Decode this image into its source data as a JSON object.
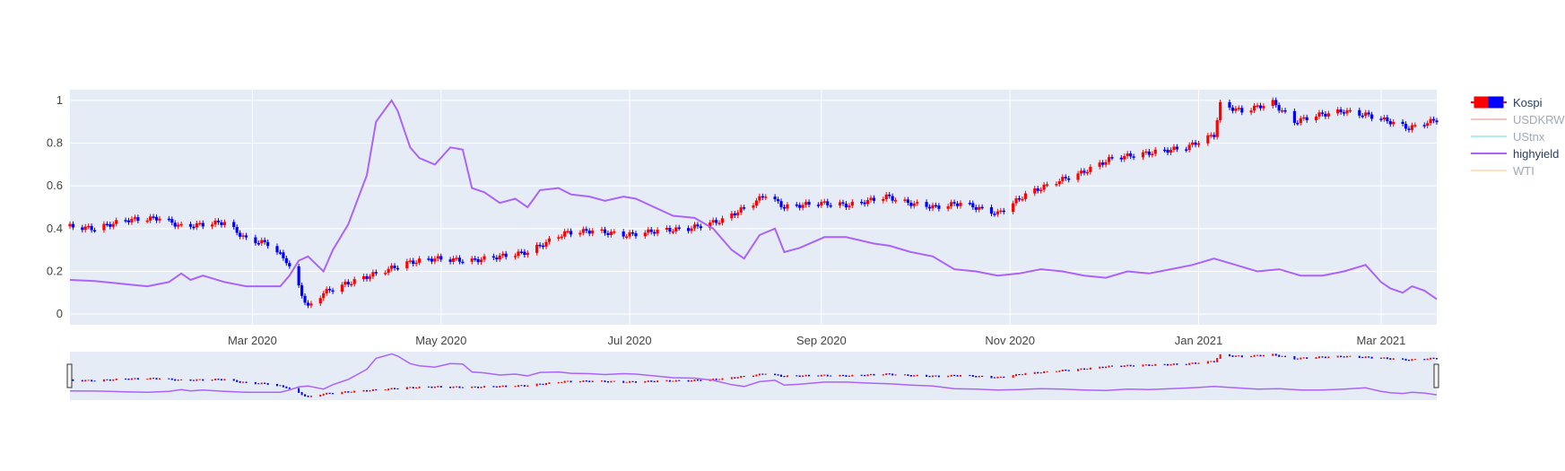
{
  "chart_data": {
    "type": "candlestick+line",
    "x_range": [
      "2020-01-02",
      "2021-03-19"
    ],
    "y_range": [
      -0.05,
      1.05
    ],
    "grid": true,
    "legend_position": "top-right",
    "x_ticks": [
      {
        "date": "2020-03-01",
        "label": "Mar 2020"
      },
      {
        "date": "2020-05-01",
        "label": "May 2020"
      },
      {
        "date": "2020-07-01",
        "label": "Jul 2020"
      },
      {
        "date": "2020-09-01",
        "label": "Sep 2020"
      },
      {
        "date": "2020-11-01",
        "label": "Nov 2020"
      },
      {
        "date": "2021-01-01",
        "label": "Jan 2021"
      },
      {
        "date": "2021-03-01",
        "label": "Mar 2021"
      }
    ],
    "y_ticks": [
      {
        "value": 0,
        "label": "0"
      },
      {
        "value": 0.2,
        "label": "0.2"
      },
      {
        "value": 0.4,
        "label": "0.4"
      },
      {
        "value": 0.6,
        "label": "0.6"
      },
      {
        "value": 0.8,
        "label": "0.8"
      },
      {
        "value": 1,
        "label": "1"
      }
    ],
    "series": [
      {
        "name": "Kospi",
        "kind": "candlestick",
        "visible": true,
        "increasing_color": "#ff0000",
        "decreasing_color": "#0000ff",
        "close": [
          [
            "2020-01-02",
            0.41
          ],
          [
            "2020-01-10",
            0.4
          ],
          [
            "2020-01-20",
            0.44
          ],
          [
            "2020-01-31",
            0.45
          ],
          [
            "2020-02-07",
            0.41
          ],
          [
            "2020-02-14",
            0.42
          ],
          [
            "2020-02-21",
            0.43
          ],
          [
            "2020-02-28",
            0.35
          ],
          [
            "2020-03-06",
            0.33
          ],
          [
            "2020-03-12",
            0.25
          ],
          [
            "2020-03-19",
            0.03
          ],
          [
            "2020-03-24",
            0.1
          ],
          [
            "2020-03-31",
            0.14
          ],
          [
            "2020-04-10",
            0.19
          ],
          [
            "2020-04-20",
            0.24
          ],
          [
            "2020-04-29",
            0.26
          ],
          [
            "2020-05-11",
            0.25
          ],
          [
            "2020-05-20",
            0.27
          ],
          [
            "2020-05-29",
            0.29
          ],
          [
            "2020-06-10",
            0.38
          ],
          [
            "2020-06-19",
            0.39
          ],
          [
            "2020-06-30",
            0.37
          ],
          [
            "2020-07-10",
            0.39
          ],
          [
            "2020-07-20",
            0.4
          ],
          [
            "2020-07-31",
            0.44
          ],
          [
            "2020-08-10",
            0.52
          ],
          [
            "2020-08-14",
            0.56
          ],
          [
            "2020-08-20",
            0.5
          ],
          [
            "2020-08-31",
            0.52
          ],
          [
            "2020-09-10",
            0.51
          ],
          [
            "2020-09-22",
            0.55
          ],
          [
            "2020-09-29",
            0.52
          ],
          [
            "2020-10-08",
            0.5
          ],
          [
            "2020-10-16",
            0.52
          ],
          [
            "2020-10-28",
            0.47
          ],
          [
            "2020-10-30",
            0.49
          ],
          [
            "2020-11-06",
            0.56
          ],
          [
            "2020-11-16",
            0.62
          ],
          [
            "2020-11-24",
            0.66
          ],
          [
            "2020-12-04",
            0.73
          ],
          [
            "2020-12-14",
            0.75
          ],
          [
            "2020-12-28",
            0.78
          ],
          [
            "2021-01-06",
            0.84
          ],
          [
            "2021-01-08",
            0.98
          ],
          [
            "2021-01-15",
            0.95
          ],
          [
            "2021-01-25",
            0.99
          ],
          [
            "2021-02-01",
            0.9
          ],
          [
            "2021-02-08",
            0.93
          ],
          [
            "2021-02-17",
            0.95
          ],
          [
            "2021-02-25",
            0.93
          ],
          [
            "2021-03-04",
            0.9
          ],
          [
            "2021-03-10",
            0.87
          ],
          [
            "2021-03-19",
            0.91
          ]
        ]
      },
      {
        "name": "USDKRW",
        "kind": "line",
        "visible": false,
        "color": "#ef9a9a"
      },
      {
        "name": "UStnx",
        "kind": "line",
        "visible": false,
        "color": "#80deea"
      },
      {
        "name": "highyield",
        "kind": "line",
        "visible": true,
        "color": "#ab63fa",
        "points": [
          [
            "2020-01-02",
            0.16
          ],
          [
            "2020-01-10",
            0.155
          ],
          [
            "2020-01-20",
            0.14
          ],
          [
            "2020-01-27",
            0.13
          ],
          [
            "2020-02-03",
            0.15
          ],
          [
            "2020-02-07",
            0.19
          ],
          [
            "2020-02-10",
            0.16
          ],
          [
            "2020-02-14",
            0.18
          ],
          [
            "2020-02-21",
            0.15
          ],
          [
            "2020-02-28",
            0.13
          ],
          [
            "2020-03-06",
            0.13
          ],
          [
            "2020-03-10",
            0.13
          ],
          [
            "2020-03-13",
            0.18
          ],
          [
            "2020-03-16",
            0.25
          ],
          [
            "2020-03-19",
            0.27
          ],
          [
            "2020-03-24",
            0.2
          ],
          [
            "2020-03-27",
            0.3
          ],
          [
            "2020-04-01",
            0.42
          ],
          [
            "2020-04-07",
            0.65
          ],
          [
            "2020-04-10",
            0.9
          ],
          [
            "2020-04-15",
            1.0
          ],
          [
            "2020-04-17",
            0.95
          ],
          [
            "2020-04-21",
            0.78
          ],
          [
            "2020-04-24",
            0.73
          ],
          [
            "2020-04-29",
            0.7
          ],
          [
            "2020-05-04",
            0.78
          ],
          [
            "2020-05-08",
            0.77
          ],
          [
            "2020-05-11",
            0.59
          ],
          [
            "2020-05-15",
            0.57
          ],
          [
            "2020-05-20",
            0.52
          ],
          [
            "2020-05-25",
            0.54
          ],
          [
            "2020-05-29",
            0.5
          ],
          [
            "2020-06-02",
            0.58
          ],
          [
            "2020-06-08",
            0.59
          ],
          [
            "2020-06-12",
            0.56
          ],
          [
            "2020-06-18",
            0.55
          ],
          [
            "2020-06-23",
            0.53
          ],
          [
            "2020-06-29",
            0.55
          ],
          [
            "2020-07-03",
            0.54
          ],
          [
            "2020-07-09",
            0.5
          ],
          [
            "2020-07-15",
            0.46
          ],
          [
            "2020-07-22",
            0.45
          ],
          [
            "2020-07-28",
            0.4
          ],
          [
            "2020-08-03",
            0.3
          ],
          [
            "2020-08-07",
            0.26
          ],
          [
            "2020-08-12",
            0.37
          ],
          [
            "2020-08-17",
            0.4
          ],
          [
            "2020-08-20",
            0.29
          ],
          [
            "2020-08-25",
            0.31
          ],
          [
            "2020-09-02",
            0.36
          ],
          [
            "2020-09-09",
            0.36
          ],
          [
            "2020-09-18",
            0.33
          ],
          [
            "2020-09-23",
            0.32
          ],
          [
            "2020-09-30",
            0.29
          ],
          [
            "2020-10-07",
            0.27
          ],
          [
            "2020-10-14",
            0.21
          ],
          [
            "2020-10-21",
            0.2
          ],
          [
            "2020-10-28",
            0.18
          ],
          [
            "2020-11-04",
            0.19
          ],
          [
            "2020-11-11",
            0.21
          ],
          [
            "2020-11-18",
            0.2
          ],
          [
            "2020-11-25",
            0.18
          ],
          [
            "2020-12-02",
            0.17
          ],
          [
            "2020-12-09",
            0.2
          ],
          [
            "2020-12-16",
            0.19
          ],
          [
            "2020-12-23",
            0.21
          ],
          [
            "2020-12-30",
            0.23
          ],
          [
            "2021-01-06",
            0.26
          ],
          [
            "2021-01-13",
            0.23
          ],
          [
            "2021-01-20",
            0.2
          ],
          [
            "2021-01-27",
            0.21
          ],
          [
            "2021-02-03",
            0.18
          ],
          [
            "2021-02-10",
            0.18
          ],
          [
            "2021-02-17",
            0.2
          ],
          [
            "2021-02-24",
            0.23
          ],
          [
            "2021-03-01",
            0.15
          ],
          [
            "2021-03-04",
            0.12
          ],
          [
            "2021-03-08",
            0.1
          ],
          [
            "2021-03-11",
            0.13
          ],
          [
            "2021-03-15",
            0.11
          ],
          [
            "2021-03-19",
            0.07
          ]
        ]
      },
      {
        "name": "WTI",
        "kind": "line",
        "visible": false,
        "color": "#ffcc99"
      }
    ],
    "overview_range": [
      "2020-01-02",
      "2021-03-19"
    ]
  }
}
